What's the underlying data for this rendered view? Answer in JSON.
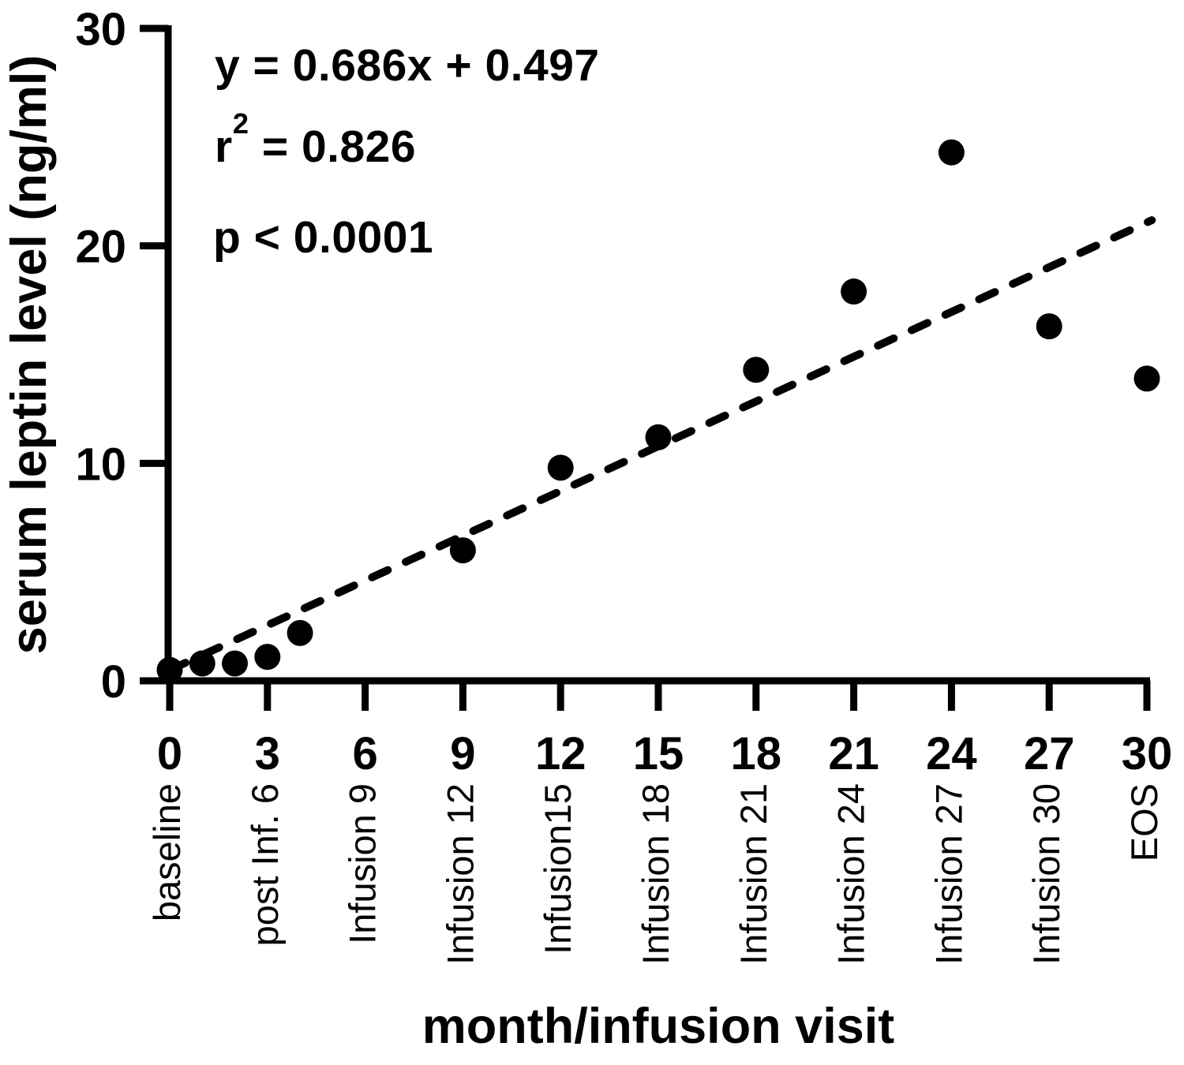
{
  "figure": {
    "background": "#ffffff",
    "ink": "#000000"
  },
  "annotations": {
    "equation": "y = 0.686x + 0.497",
    "r_squared": {
      "base": "r",
      "sup": "2",
      "rest": " = 0.826"
    },
    "p_value": "p < 0.0001"
  },
  "chart_data": {
    "type": "scatter",
    "title": "",
    "xlabel": "month/infusion visit",
    "ylabel": "serum leptin level (ng/ml)",
    "xlim": [
      0,
      30
    ],
    "ylim": [
      0,
      30
    ],
    "x_ticks": [
      0,
      3,
      6,
      9,
      12,
      15,
      18,
      21,
      24,
      27,
      30
    ],
    "x_tick_visit_labels": [
      "baseline",
      "post Inf. 6",
      "Infusion 9",
      "Infusion 12",
      "Infusion15",
      "Infusion 18",
      "Infusion 21",
      "Infusion 24",
      "Infusion 27",
      "Infusion 30",
      "EOS"
    ],
    "y_ticks": [
      0,
      10,
      20,
      30
    ],
    "grid": false,
    "legend": null,
    "marker_color": "#000000",
    "series": [
      {
        "name": "serum leptin level",
        "marker": "filled-circle",
        "points": [
          {
            "x": 0,
            "y": 0.5
          },
          {
            "x": 1,
            "y": 0.8
          },
          {
            "x": 2,
            "y": 0.8
          },
          {
            "x": 3,
            "y": 1.1
          },
          {
            "x": 4,
            "y": 2.2
          },
          {
            "x": 9,
            "y": 6.0
          },
          {
            "x": 12,
            "y": 9.8
          },
          {
            "x": 15,
            "y": 11.2
          },
          {
            "x": 18,
            "y": 14.3
          },
          {
            "x": 21,
            "y": 17.9
          },
          {
            "x": 24,
            "y": 24.3
          },
          {
            "x": 27,
            "y": 16.3
          },
          {
            "x": 30,
            "y": 13.9
          }
        ]
      }
    ],
    "trendline": {
      "style": "dashed",
      "slope": 0.686,
      "intercept": 0.497,
      "x_start": 0,
      "x_end": 30.15
    }
  }
}
